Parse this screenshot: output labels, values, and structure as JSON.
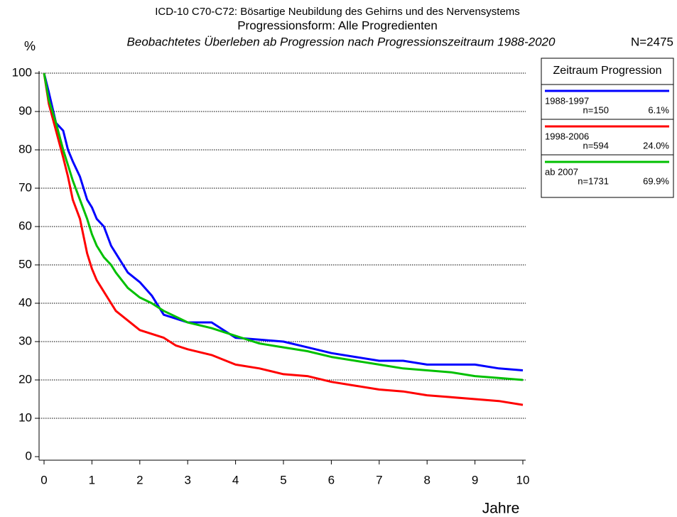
{
  "chart_data": {
    "type": "line",
    "title": "ICD-10 C70-C72: Bösartige Neubildung des Gehirns und des Nervensystems",
    "subtitle": "Progressionsform: Alle Progredienten",
    "subtitle2": "Beobachtetes Überleben ab Progression nach Progressionszeitraum 1988-2020",
    "total_label": "N=2475",
    "y_label": "%",
    "x_label": "Jahre",
    "legend_title": "Zeitraum Progression",
    "legend": "right",
    "grid": true,
    "xlim": [
      0,
      10
    ],
    "ylim": [
      0,
      100
    ],
    "xticks": [
      0,
      1,
      2,
      3,
      4,
      5,
      6,
      7,
      8,
      9,
      10
    ],
    "yticks": [
      0,
      10,
      20,
      30,
      40,
      50,
      60,
      70,
      80,
      90,
      100
    ],
    "x": [
      0,
      0.1,
      0.25,
      0.4,
      0.5,
      0.6,
      0.75,
      0.9,
      1.0,
      1.1,
      1.25,
      1.4,
      1.5,
      1.75,
      2.0,
      2.25,
      2.5,
      2.75,
      3.0,
      3.5,
      4.0,
      4.5,
      5.0,
      5.5,
      6.0,
      6.5,
      7.0,
      7.5,
      8.0,
      8.5,
      9.0,
      9.5,
      10
    ],
    "series": [
      {
        "name": "1988-1997",
        "n_text": "n=150",
        "share_text": "6.1%",
        "color": "#0000ff",
        "values": [
          100,
          95,
          87,
          85,
          80,
          77,
          73,
          67,
          65,
          62,
          60,
          55,
          53,
          48,
          45.5,
          42,
          37,
          36,
          35,
          35,
          31,
          30.5,
          30,
          28.5,
          27,
          26,
          25,
          25,
          24,
          24,
          24,
          23,
          22.5
        ]
      },
      {
        "name": "1998-2006",
        "n_text": "n=594",
        "share_text": "24.0%",
        "color": "#ff0000",
        "values": [
          100,
          92,
          85,
          78,
          73,
          67,
          62,
          53,
          49,
          46,
          43,
          40,
          38,
          35.5,
          33,
          32,
          31,
          29,
          28,
          26.5,
          24,
          23,
          21.5,
          21,
          19.5,
          18.5,
          17.5,
          17,
          16,
          15.5,
          15,
          14.5,
          13.5
        ]
      },
      {
        "name": "ab 2007",
        "n_text": "n=1731",
        "share_text": "69.9%",
        "color": "#00c000",
        "values": [
          100,
          93,
          87,
          80,
          76,
          72,
          67,
          62,
          58,
          55,
          52,
          50,
          48,
          44,
          41.5,
          40,
          38,
          36.5,
          35,
          33.5,
          31.5,
          29.5,
          28.5,
          27.5,
          26,
          25,
          24,
          23,
          22.5,
          22,
          21,
          20.5,
          20
        ]
      }
    ]
  }
}
